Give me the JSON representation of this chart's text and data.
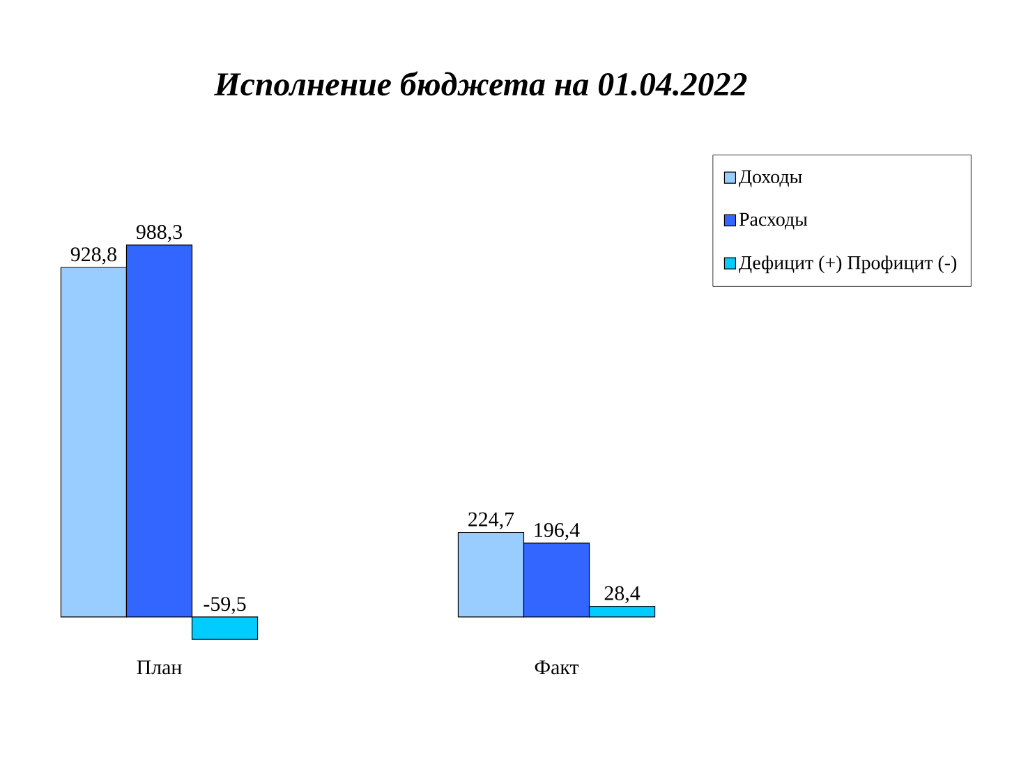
{
  "chart_data": {
    "type": "bar",
    "title": "Исполнение бюджета на 01.04.2022",
    "categories": [
      "План",
      "Факт"
    ],
    "series": [
      {
        "name": "Доходы",
        "color": "#99ccff",
        "values": [
          928.8,
          224.7
        ],
        "value_labels": [
          "928,8",
          "224,7"
        ]
      },
      {
        "name": "Расходы",
        "color": "#3366ff",
        "values": [
          988.3,
          196.4
        ],
        "value_labels": [
          "988,3",
          "196,4"
        ]
      },
      {
        "name": "Дефицит (+) Профицит (-)",
        "color": "#00ccff",
        "values": [
          -59.5,
          28.4
        ],
        "value_labels": [
          "-59,5",
          "28,4"
        ]
      }
    ],
    "legend": "top right"
  }
}
